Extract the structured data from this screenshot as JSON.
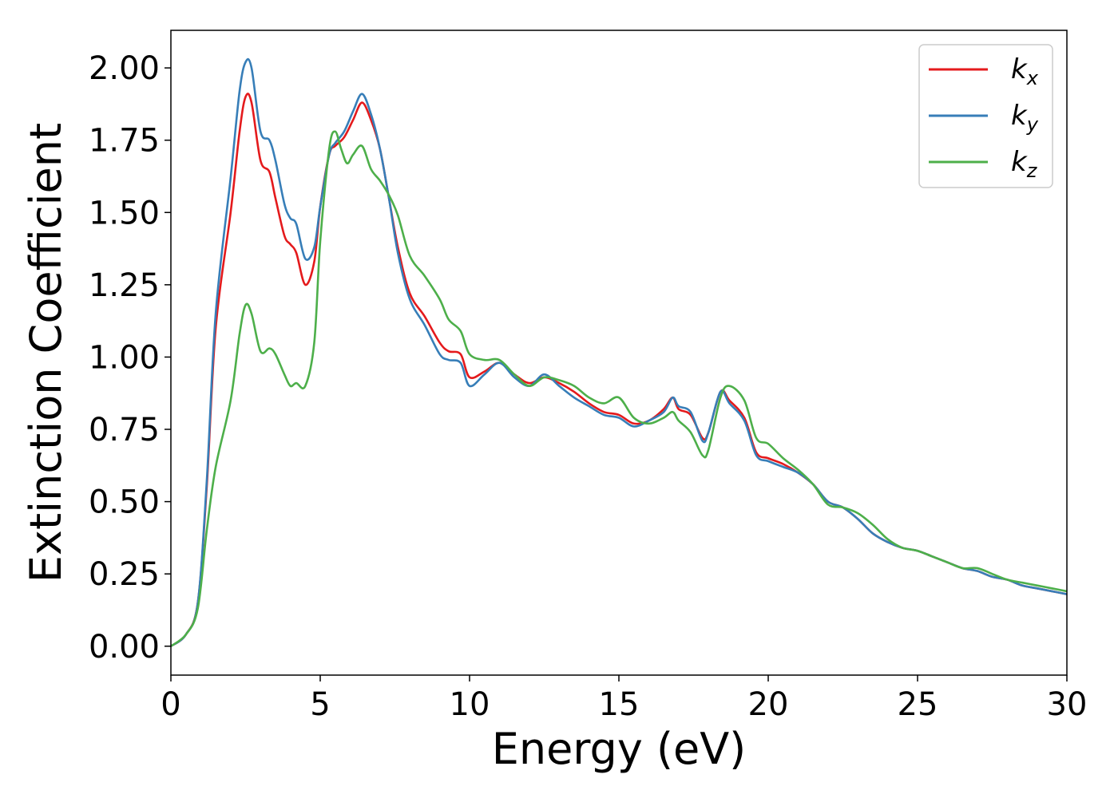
{
  "chart_data": {
    "type": "line",
    "xlabel": "Energy (eV)",
    "ylabel": "Extinction Coefficient",
    "xlim": [
      0,
      30
    ],
    "ylim": [
      -0.1,
      2.13
    ],
    "xticks": [
      0,
      5,
      10,
      15,
      20,
      25,
      30
    ],
    "xtick_labels": [
      "0",
      "5",
      "10",
      "15",
      "20",
      "25",
      "30"
    ],
    "yticks": [
      0,
      0.25,
      0.5,
      0.75,
      1.0,
      1.25,
      1.5,
      1.75,
      2.0
    ],
    "ytick_labels": [
      "0.00",
      "0.25",
      "0.50",
      "0.75",
      "1.00",
      "1.25",
      "1.50",
      "1.75",
      "2.00"
    ],
    "grid": false,
    "legend_position": "top-right",
    "series": [
      {
        "name": "k_x",
        "label_main": "k",
        "label_sub": "x",
        "color": "#e41a1c",
        "points": [
          [
            0,
            0
          ],
          [
            0.5,
            0.04
          ],
          [
            0.9,
            0.15
          ],
          [
            1.2,
            0.55
          ],
          [
            1.5,
            1.1
          ],
          [
            2.0,
            1.5
          ],
          [
            2.3,
            1.78
          ],
          [
            2.5,
            1.9
          ],
          [
            2.7,
            1.88
          ],
          [
            3.0,
            1.68
          ],
          [
            3.3,
            1.64
          ],
          [
            3.5,
            1.55
          ],
          [
            3.8,
            1.42
          ],
          [
            4.0,
            1.39
          ],
          [
            4.2,
            1.36
          ],
          [
            4.5,
            1.25
          ],
          [
            4.8,
            1.33
          ],
          [
            5.0,
            1.52
          ],
          [
            5.3,
            1.7
          ],
          [
            5.5,
            1.73
          ],
          [
            5.8,
            1.76
          ],
          [
            6.1,
            1.82
          ],
          [
            6.4,
            1.88
          ],
          [
            6.7,
            1.82
          ],
          [
            7.0,
            1.72
          ],
          [
            7.3,
            1.55
          ],
          [
            7.6,
            1.38
          ],
          [
            8.0,
            1.22
          ],
          [
            8.5,
            1.14
          ],
          [
            9.0,
            1.05
          ],
          [
            9.3,
            1.02
          ],
          [
            9.7,
            1.01
          ],
          [
            10.0,
            0.93
          ],
          [
            10.5,
            0.95
          ],
          [
            11.0,
            0.98
          ],
          [
            11.5,
            0.94
          ],
          [
            12.0,
            0.91
          ],
          [
            12.5,
            0.93
          ],
          [
            13.0,
            0.91
          ],
          [
            13.5,
            0.88
          ],
          [
            14.0,
            0.84
          ],
          [
            14.5,
            0.81
          ],
          [
            15.0,
            0.8
          ],
          [
            15.5,
            0.77
          ],
          [
            16.0,
            0.78
          ],
          [
            16.5,
            0.82
          ],
          [
            16.8,
            0.86
          ],
          [
            17.0,
            0.82
          ],
          [
            17.4,
            0.8
          ],
          [
            17.8,
            0.72
          ],
          [
            18.0,
            0.74
          ],
          [
            18.4,
            0.88
          ],
          [
            18.7,
            0.85
          ],
          [
            19.2,
            0.79
          ],
          [
            19.6,
            0.67
          ],
          [
            20.0,
            0.65
          ],
          [
            20.5,
            0.63
          ],
          [
            21.0,
            0.6
          ],
          [
            21.5,
            0.56
          ],
          [
            22.0,
            0.5
          ],
          [
            22.5,
            0.48
          ],
          [
            23.0,
            0.44
          ],
          [
            23.5,
            0.39
          ],
          [
            24.0,
            0.36
          ],
          [
            24.5,
            0.34
          ],
          [
            25.0,
            0.33
          ],
          [
            25.5,
            0.31
          ],
          [
            26.0,
            0.29
          ],
          [
            26.5,
            0.27
          ],
          [
            27.0,
            0.26
          ],
          [
            27.5,
            0.24
          ],
          [
            28.0,
            0.23
          ],
          [
            28.5,
            0.21
          ],
          [
            29.0,
            0.2
          ],
          [
            29.5,
            0.19
          ],
          [
            30.0,
            0.18
          ]
        ]
      },
      {
        "name": "k_y",
        "label_main": "k",
        "label_sub": "y",
        "color": "#377eb8",
        "points": [
          [
            0,
            0
          ],
          [
            0.5,
            0.04
          ],
          [
            0.9,
            0.15
          ],
          [
            1.2,
            0.57
          ],
          [
            1.5,
            1.15
          ],
          [
            2.0,
            1.62
          ],
          [
            2.3,
            1.92
          ],
          [
            2.5,
            2.02
          ],
          [
            2.7,
            2.0
          ],
          [
            3.0,
            1.78
          ],
          [
            3.3,
            1.75
          ],
          [
            3.5,
            1.68
          ],
          [
            3.8,
            1.53
          ],
          [
            4.0,
            1.48
          ],
          [
            4.2,
            1.46
          ],
          [
            4.5,
            1.34
          ],
          [
            4.8,
            1.38
          ],
          [
            5.0,
            1.52
          ],
          [
            5.3,
            1.7
          ],
          [
            5.5,
            1.74
          ],
          [
            5.8,
            1.78
          ],
          [
            6.1,
            1.85
          ],
          [
            6.4,
            1.91
          ],
          [
            6.7,
            1.84
          ],
          [
            7.0,
            1.72
          ],
          [
            7.3,
            1.55
          ],
          [
            7.6,
            1.36
          ],
          [
            8.0,
            1.2
          ],
          [
            8.5,
            1.11
          ],
          [
            9.0,
            1.01
          ],
          [
            9.3,
            0.99
          ],
          [
            9.7,
            0.98
          ],
          [
            10.0,
            0.9
          ],
          [
            10.5,
            0.94
          ],
          [
            11.0,
            0.98
          ],
          [
            11.5,
            0.93
          ],
          [
            12.0,
            0.9
          ],
          [
            12.5,
            0.94
          ],
          [
            13.0,
            0.9
          ],
          [
            13.5,
            0.86
          ],
          [
            14.0,
            0.83
          ],
          [
            14.5,
            0.8
          ],
          [
            15.0,
            0.79
          ],
          [
            15.5,
            0.76
          ],
          [
            16.0,
            0.78
          ],
          [
            16.5,
            0.81
          ],
          [
            16.8,
            0.86
          ],
          [
            17.0,
            0.83
          ],
          [
            17.4,
            0.81
          ],
          [
            17.8,
            0.71
          ],
          [
            18.0,
            0.74
          ],
          [
            18.4,
            0.88
          ],
          [
            18.7,
            0.84
          ],
          [
            19.2,
            0.78
          ],
          [
            19.6,
            0.66
          ],
          [
            20.0,
            0.64
          ],
          [
            20.5,
            0.62
          ],
          [
            21.0,
            0.6
          ],
          [
            21.5,
            0.56
          ],
          [
            22.0,
            0.5
          ],
          [
            22.5,
            0.48
          ],
          [
            23.0,
            0.44
          ],
          [
            23.5,
            0.39
          ],
          [
            24.0,
            0.36
          ],
          [
            24.5,
            0.34
          ],
          [
            25.0,
            0.33
          ],
          [
            25.5,
            0.31
          ],
          [
            26.0,
            0.29
          ],
          [
            26.5,
            0.27
          ],
          [
            27.0,
            0.26
          ],
          [
            27.5,
            0.24
          ],
          [
            28.0,
            0.23
          ],
          [
            28.5,
            0.21
          ],
          [
            29.0,
            0.2
          ],
          [
            29.5,
            0.19
          ],
          [
            30.0,
            0.18
          ]
        ]
      },
      {
        "name": "k_z",
        "label_main": "k",
        "label_sub": "z",
        "color": "#4daf4a",
        "points": [
          [
            0,
            0
          ],
          [
            0.5,
            0.04
          ],
          [
            0.9,
            0.13
          ],
          [
            1.2,
            0.4
          ],
          [
            1.5,
            0.62
          ],
          [
            2.0,
            0.85
          ],
          [
            2.3,
            1.08
          ],
          [
            2.5,
            1.18
          ],
          [
            2.7,
            1.15
          ],
          [
            3.0,
            1.02
          ],
          [
            3.3,
            1.03
          ],
          [
            3.5,
            1.01
          ],
          [
            3.8,
            0.94
          ],
          [
            4.0,
            0.9
          ],
          [
            4.2,
            0.91
          ],
          [
            4.5,
            0.9
          ],
          [
            4.8,
            1.05
          ],
          [
            5.0,
            1.4
          ],
          [
            5.3,
            1.72
          ],
          [
            5.5,
            1.78
          ],
          [
            5.7,
            1.72
          ],
          [
            5.9,
            1.67
          ],
          [
            6.1,
            1.7
          ],
          [
            6.4,
            1.73
          ],
          [
            6.7,
            1.65
          ],
          [
            7.0,
            1.61
          ],
          [
            7.3,
            1.56
          ],
          [
            7.6,
            1.49
          ],
          [
            8.0,
            1.35
          ],
          [
            8.5,
            1.28
          ],
          [
            9.0,
            1.2
          ],
          [
            9.3,
            1.13
          ],
          [
            9.7,
            1.09
          ],
          [
            10.0,
            1.01
          ],
          [
            10.5,
            0.99
          ],
          [
            11.0,
            0.99
          ],
          [
            11.5,
            0.94
          ],
          [
            12.0,
            0.9
          ],
          [
            12.5,
            0.93
          ],
          [
            13.0,
            0.92
          ],
          [
            13.5,
            0.9
          ],
          [
            14.0,
            0.86
          ],
          [
            14.5,
            0.84
          ],
          [
            15.0,
            0.86
          ],
          [
            15.5,
            0.79
          ],
          [
            16.0,
            0.77
          ],
          [
            16.5,
            0.79
          ],
          [
            16.8,
            0.81
          ],
          [
            17.0,
            0.78
          ],
          [
            17.4,
            0.74
          ],
          [
            17.8,
            0.66
          ],
          [
            18.0,
            0.68
          ],
          [
            18.4,
            0.86
          ],
          [
            18.7,
            0.9
          ],
          [
            19.2,
            0.85
          ],
          [
            19.6,
            0.72
          ],
          [
            20.0,
            0.7
          ],
          [
            20.5,
            0.65
          ],
          [
            21.0,
            0.61
          ],
          [
            21.5,
            0.56
          ],
          [
            22.0,
            0.49
          ],
          [
            22.5,
            0.48
          ],
          [
            23.0,
            0.46
          ],
          [
            23.5,
            0.42
          ],
          [
            24.0,
            0.37
          ],
          [
            24.5,
            0.34
          ],
          [
            25.0,
            0.33
          ],
          [
            25.5,
            0.31
          ],
          [
            26.0,
            0.29
          ],
          [
            26.5,
            0.27
          ],
          [
            27.0,
            0.27
          ],
          [
            27.5,
            0.25
          ],
          [
            28.0,
            0.23
          ],
          [
            28.5,
            0.22
          ],
          [
            29.0,
            0.21
          ],
          [
            29.5,
            0.2
          ],
          [
            30.0,
            0.19
          ]
        ]
      }
    ]
  }
}
